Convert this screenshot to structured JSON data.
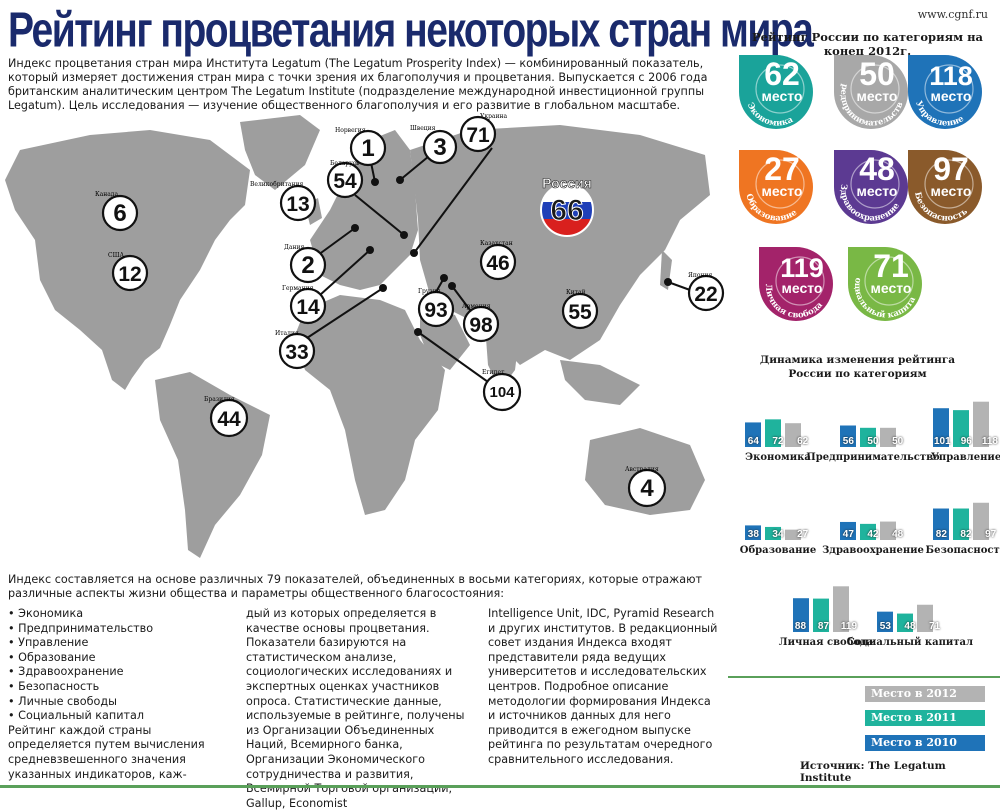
{
  "header": {
    "title": "Рейтинг процветания некоторых стран мира",
    "site": "www.cgnf.ru"
  },
  "intro": "Индекс процветания стран мира Института Legatum (The Legatum Prosperity Index) — комбинированный показатель, который измеряет достижения стран мира с точки зрения их благополучия и процветания. Выпускается с 2006 года британским аналитическим центром The Legatum Institute (подразделение международной инвестиционной группы Legatum). Цель исследования — изучение общественного благополучия и его развитие в глобальном масштабе.",
  "map": {
    "russia": {
      "label": "Россия",
      "rank": "66"
    },
    "countries": [
      {
        "name": "Норвегия",
        "rank": "1"
      },
      {
        "name": "Швеция",
        "rank": "3"
      },
      {
        "name": "Украина",
        "rank": "71"
      },
      {
        "name": "Беларусь",
        "rank": "54"
      },
      {
        "name": "Великобритания",
        "rank": "13"
      },
      {
        "name": "Канада",
        "rank": "6"
      },
      {
        "name": "США",
        "rank": "12"
      },
      {
        "name": "Дания",
        "rank": "2"
      },
      {
        "name": "Германия",
        "rank": "14"
      },
      {
        "name": "Италия",
        "rank": "33"
      },
      {
        "name": "Казахстан",
        "rank": "46"
      },
      {
        "name": "Грузия",
        "rank": "93"
      },
      {
        "name": "Армения",
        "rank": "98"
      },
      {
        "name": "Китай",
        "rank": "55"
      },
      {
        "name": "Япония",
        "rank": "22"
      },
      {
        "name": "Египет",
        "rank": "104"
      },
      {
        "name": "Бразилия",
        "rank": "44"
      },
      {
        "name": "Австралия",
        "rank": "4"
      }
    ]
  },
  "rankings": {
    "title": "Рейтинг России по категориям на конец 2012г.",
    "place_word": "место",
    "items": [
      {
        "category": "Экономика",
        "rank": "62",
        "color": "#1aa39a"
      },
      {
        "category": "Предпринимательство",
        "rank": "50",
        "color": "#a8a8a8"
      },
      {
        "category": "Управление",
        "rank": "118",
        "color": "#1f73b8"
      },
      {
        "category": "Образование",
        "rank": "27",
        "color": "#ef7522"
      },
      {
        "category": "Здравоохранение",
        "rank": "48",
        "color": "#5c3a92"
      },
      {
        "category": "Безопасность",
        "rank": "97",
        "color": "#8a5a2b"
      },
      {
        "category": "Личная свобода",
        "rank": "119",
        "color": "#a3236a"
      },
      {
        "category": "Социальный капитал",
        "rank": "71",
        "color": "#79b845"
      }
    ]
  },
  "chart_data": {
    "type": "bar",
    "title": "Динамика изменения рейтинга России по категориям",
    "series": [
      {
        "name": "2010",
        "color": "#1f73b8"
      },
      {
        "name": "2011",
        "color": "#1fb39d"
      },
      {
        "name": "2012",
        "color": "#b3b3b3"
      }
    ],
    "groups": [
      {
        "category": "Экономика",
        "values": [
          64,
          72,
          62
        ]
      },
      {
        "category": "Предпринимательство",
        "values": [
          56,
          50,
          50
        ]
      },
      {
        "category": "Управление",
        "values": [
          101,
          96,
          118
        ]
      },
      {
        "category": "Образование",
        "values": [
          38,
          34,
          27
        ]
      },
      {
        "category": "Здравоохранение",
        "values": [
          47,
          42,
          48
        ]
      },
      {
        "category": "Безопасность",
        "values": [
          82,
          82,
          97
        ]
      },
      {
        "category": "Личная свобода",
        "values": [
          88,
          87,
          119
        ]
      },
      {
        "category": "Социальный капитал",
        "values": [
          53,
          48,
          71
        ]
      }
    ]
  },
  "legend": [
    {
      "label": "Место в 2012 году",
      "color": "#b3b3b3"
    },
    {
      "label": "Место в 2011 году",
      "color": "#1fb39d"
    },
    {
      "label": "Место в 2010 году",
      "color": "#1f73b8"
    }
  ],
  "source": "Источник: The Legatum Institute",
  "lower": {
    "intro": "Индекс составляется на основе различных 79 показателей, объединенных в восьми категориях, которые отражают различные аспекты жизни общества и параметры общественного благосостояния:",
    "list": [
      "Экономика",
      "Предпринимательство",
      "Управление",
      "Образование",
      "Здравоохранение",
      "Безопасность",
      "Личные свободы",
      "Социальный капитал"
    ],
    "col1_tail": "Рейтинг каждой страны определяется путем вычисления средневзвешенного значения указанных индикаторов, каж-",
    "col2": "дый из которых определяется в качестве основы процветания. Показатели базируются на статистическом анализе, социологических исследованиях и экспертных оценках участников опроса. Статистические данные, используемые в рейтинге, получены из Организации Объединенных Наций, Всемирного банка, Организации Экономического сотрудничества и развития, Всемирной Торговой организации, Gallup, Economist",
    "col3": "Intelligence Unit, IDC, Pyramid Research и других институтов. В редакционный совет издания Индекса входят представители ряда ведущих университетов и исследовательских центров. Подробное описание методологии формирования Индекса и источников данных для него приводится в ежегодном выпуске рейтинга по результатам очередного сравнительного исследования."
  }
}
